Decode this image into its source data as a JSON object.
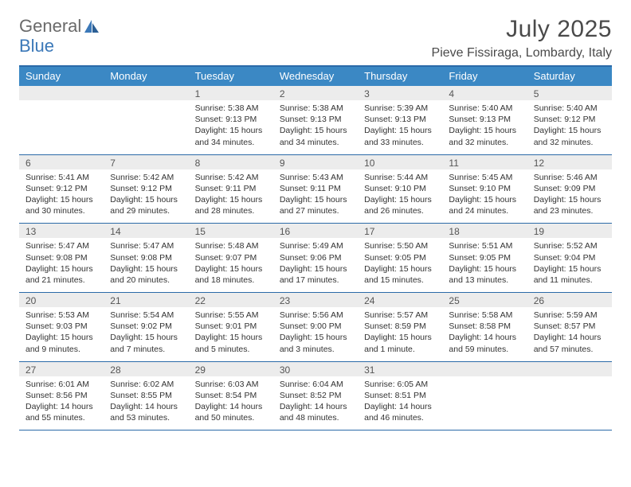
{
  "brand": {
    "part1": "General",
    "part2": "Blue"
  },
  "title": "July 2025",
  "location": "Pieve Fissiraga, Lombardy, Italy",
  "colors": {
    "header_bg": "#3b88c4",
    "border": "#2b6aa8",
    "daynum_bg": "#ececec",
    "text": "#333333",
    "logo_gray": "#6a6a6a",
    "logo_blue": "#3b78b8"
  },
  "dayHeaders": [
    "Sunday",
    "Monday",
    "Tuesday",
    "Wednesday",
    "Thursday",
    "Friday",
    "Saturday"
  ],
  "weeks": [
    [
      {
        "n": "",
        "sunrise": "",
        "sunset": "",
        "daylight": ""
      },
      {
        "n": "",
        "sunrise": "",
        "sunset": "",
        "daylight": ""
      },
      {
        "n": "1",
        "sunrise": "5:38 AM",
        "sunset": "9:13 PM",
        "daylight": "15 hours and 34 minutes."
      },
      {
        "n": "2",
        "sunrise": "5:38 AM",
        "sunset": "9:13 PM",
        "daylight": "15 hours and 34 minutes."
      },
      {
        "n": "3",
        "sunrise": "5:39 AM",
        "sunset": "9:13 PM",
        "daylight": "15 hours and 33 minutes."
      },
      {
        "n": "4",
        "sunrise": "5:40 AM",
        "sunset": "9:13 PM",
        "daylight": "15 hours and 32 minutes."
      },
      {
        "n": "5",
        "sunrise": "5:40 AM",
        "sunset": "9:12 PM",
        "daylight": "15 hours and 32 minutes."
      }
    ],
    [
      {
        "n": "6",
        "sunrise": "5:41 AM",
        "sunset": "9:12 PM",
        "daylight": "15 hours and 30 minutes."
      },
      {
        "n": "7",
        "sunrise": "5:42 AM",
        "sunset": "9:12 PM",
        "daylight": "15 hours and 29 minutes."
      },
      {
        "n": "8",
        "sunrise": "5:42 AM",
        "sunset": "9:11 PM",
        "daylight": "15 hours and 28 minutes."
      },
      {
        "n": "9",
        "sunrise": "5:43 AM",
        "sunset": "9:11 PM",
        "daylight": "15 hours and 27 minutes."
      },
      {
        "n": "10",
        "sunrise": "5:44 AM",
        "sunset": "9:10 PM",
        "daylight": "15 hours and 26 minutes."
      },
      {
        "n": "11",
        "sunrise": "5:45 AM",
        "sunset": "9:10 PM",
        "daylight": "15 hours and 24 minutes."
      },
      {
        "n": "12",
        "sunrise": "5:46 AM",
        "sunset": "9:09 PM",
        "daylight": "15 hours and 23 minutes."
      }
    ],
    [
      {
        "n": "13",
        "sunrise": "5:47 AM",
        "sunset": "9:08 PM",
        "daylight": "15 hours and 21 minutes."
      },
      {
        "n": "14",
        "sunrise": "5:47 AM",
        "sunset": "9:08 PM",
        "daylight": "15 hours and 20 minutes."
      },
      {
        "n": "15",
        "sunrise": "5:48 AM",
        "sunset": "9:07 PM",
        "daylight": "15 hours and 18 minutes."
      },
      {
        "n": "16",
        "sunrise": "5:49 AM",
        "sunset": "9:06 PM",
        "daylight": "15 hours and 17 minutes."
      },
      {
        "n": "17",
        "sunrise": "5:50 AM",
        "sunset": "9:05 PM",
        "daylight": "15 hours and 15 minutes."
      },
      {
        "n": "18",
        "sunrise": "5:51 AM",
        "sunset": "9:05 PM",
        "daylight": "15 hours and 13 minutes."
      },
      {
        "n": "19",
        "sunrise": "5:52 AM",
        "sunset": "9:04 PM",
        "daylight": "15 hours and 11 minutes."
      }
    ],
    [
      {
        "n": "20",
        "sunrise": "5:53 AM",
        "sunset": "9:03 PM",
        "daylight": "15 hours and 9 minutes."
      },
      {
        "n": "21",
        "sunrise": "5:54 AM",
        "sunset": "9:02 PM",
        "daylight": "15 hours and 7 minutes."
      },
      {
        "n": "22",
        "sunrise": "5:55 AM",
        "sunset": "9:01 PM",
        "daylight": "15 hours and 5 minutes."
      },
      {
        "n": "23",
        "sunrise": "5:56 AM",
        "sunset": "9:00 PM",
        "daylight": "15 hours and 3 minutes."
      },
      {
        "n": "24",
        "sunrise": "5:57 AM",
        "sunset": "8:59 PM",
        "daylight": "15 hours and 1 minute."
      },
      {
        "n": "25",
        "sunrise": "5:58 AM",
        "sunset": "8:58 PM",
        "daylight": "14 hours and 59 minutes."
      },
      {
        "n": "26",
        "sunrise": "5:59 AM",
        "sunset": "8:57 PM",
        "daylight": "14 hours and 57 minutes."
      }
    ],
    [
      {
        "n": "27",
        "sunrise": "6:01 AM",
        "sunset": "8:56 PM",
        "daylight": "14 hours and 55 minutes."
      },
      {
        "n": "28",
        "sunrise": "6:02 AM",
        "sunset": "8:55 PM",
        "daylight": "14 hours and 53 minutes."
      },
      {
        "n": "29",
        "sunrise": "6:03 AM",
        "sunset": "8:54 PM",
        "daylight": "14 hours and 50 minutes."
      },
      {
        "n": "30",
        "sunrise": "6:04 AM",
        "sunset": "8:52 PM",
        "daylight": "14 hours and 48 minutes."
      },
      {
        "n": "31",
        "sunrise": "6:05 AM",
        "sunset": "8:51 PM",
        "daylight": "14 hours and 46 minutes."
      },
      {
        "n": "",
        "sunrise": "",
        "sunset": "",
        "daylight": ""
      },
      {
        "n": "",
        "sunrise": "",
        "sunset": "",
        "daylight": ""
      }
    ]
  ],
  "labels": {
    "sunrise": "Sunrise:",
    "sunset": "Sunset:",
    "daylight": "Daylight:"
  }
}
